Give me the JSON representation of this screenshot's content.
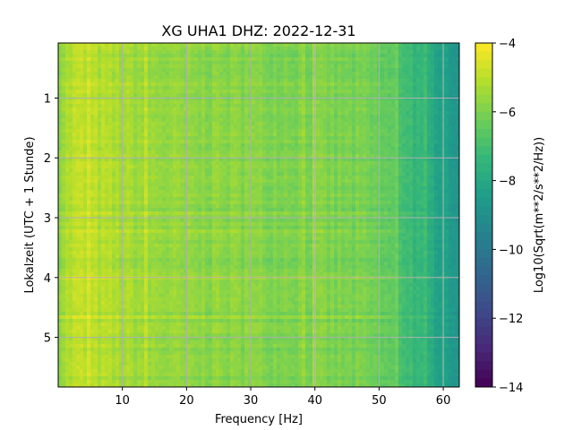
{
  "chart_data": {
    "type": "heatmap",
    "title": "XG UHA1  DHZ: 2022-12-31",
    "xlabel": "Frequency [Hz]",
    "ylabel": "Lokalzeit (UTC + 1 Stunde)",
    "xlim": [
      0,
      62.5
    ],
    "ylim": [
      5.83,
      0.08
    ],
    "y_inverted": true,
    "x_ticks": [
      10,
      20,
      30,
      40,
      50,
      60
    ],
    "y_ticks": [
      1,
      2,
      3,
      4,
      5
    ],
    "grid": true,
    "colormap": "viridis",
    "colorbar": {
      "label": "Log10(Sqrt(m**2/s**2/Hz))",
      "range": [
        -14,
        -4
      ],
      "ticks": [
        -4,
        -6,
        -8,
        -10,
        -12,
        -14
      ]
    },
    "value_profile_by_frequency": {
      "frequency_hz": [
        0,
        3,
        10,
        20,
        30,
        40,
        48,
        52,
        55,
        58,
        60,
        62.5
      ],
      "value": [
        -5.6,
        -5.0,
        -5.4,
        -5.8,
        -5.9,
        -6.0,
        -6.2,
        -6.6,
        -7.2,
        -7.9,
        -8.3,
        -8.7
      ]
    }
  }
}
